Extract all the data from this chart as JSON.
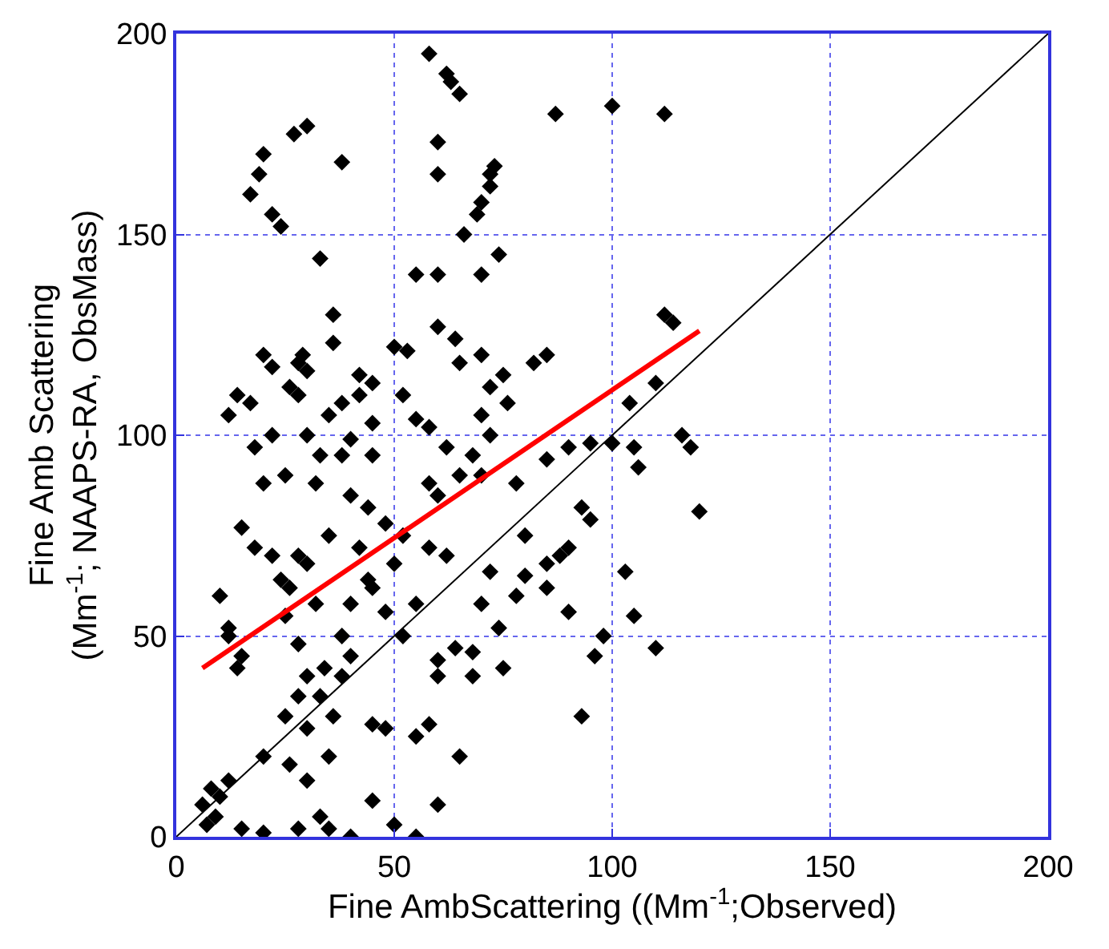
{
  "chart_data": {
    "type": "scatter",
    "xlabel": "Fine AmbScattering ((Mm$^{-1}$;Observed)",
    "ylabel": "Fine Amb Scattering\n(Mm$^{-1}$; NAAPS-RA, ObsMass)",
    "xlim": [
      0,
      200
    ],
    "ylim": [
      0,
      200
    ],
    "xticks": [
      0,
      50,
      100,
      150,
      200
    ],
    "yticks": [
      0,
      50,
      100,
      150,
      200
    ],
    "grid": true,
    "marker": "diamond",
    "series": [
      {
        "color": "#000000",
        "x": [
          30,
          27,
          19,
          20,
          17,
          22,
          24,
          38,
          33,
          58,
          62,
          63,
          65,
          87,
          100,
          112,
          60,
          60,
          72,
          72,
          73,
          70,
          69,
          66,
          74,
          55,
          60,
          70,
          36,
          36,
          42,
          60,
          64,
          29,
          28,
          30,
          20,
          22,
          26,
          50,
          53,
          65,
          70,
          52,
          72,
          76,
          14,
          17,
          12,
          22,
          18,
          40,
          45,
          55,
          58,
          33,
          38,
          45,
          62,
          68,
          58,
          60,
          65,
          70,
          78,
          85,
          90,
          95,
          100,
          105,
          106,
          93,
          95,
          103,
          116,
          118,
          112,
          114,
          120,
          110,
          104,
          88,
          80,
          85,
          78,
          90,
          98,
          96,
          105,
          110,
          93,
          74,
          68,
          60,
          64,
          55,
          50,
          45,
          40,
          42,
          35,
          30,
          28,
          24,
          25,
          32,
          38,
          34,
          30,
          28,
          36,
          30,
          25,
          15,
          12,
          14,
          8,
          6,
          9,
          10,
          12,
          7,
          15,
          20,
          28,
          33,
          35,
          40,
          45,
          50,
          55,
          60,
          20,
          26,
          30,
          35,
          45,
          48,
          55,
          58,
          65,
          60,
          68,
          75,
          70,
          72,
          80,
          85,
          90,
          62,
          58,
          52,
          48,
          44,
          40,
          32,
          25,
          20,
          15,
          18,
          10,
          12,
          22,
          26,
          44,
          48,
          52,
          40,
          38,
          33,
          28,
          70,
          72,
          45,
          42,
          38,
          35,
          30,
          28,
          85,
          82,
          75
        ],
        "values": [
          177,
          175,
          165,
          170,
          160,
          155,
          152,
          168,
          144,
          195,
          190,
          188,
          185,
          180,
          182,
          180,
          173,
          165,
          162,
          165,
          167,
          158,
          155,
          150,
          145,
          140,
          140,
          140,
          130,
          123,
          115,
          127,
          124,
          120,
          118,
          116,
          120,
          117,
          112,
          122,
          121,
          118,
          120,
          110,
          112,
          108,
          110,
          108,
          105,
          100,
          97,
          99,
          103,
          104,
          102,
          95,
          95,
          95,
          97,
          95,
          88,
          85,
          90,
          90,
          88,
          94,
          97,
          98,
          98,
          97,
          92,
          82,
          79,
          66,
          100,
          97,
          130,
          128,
          81,
          113,
          108,
          70,
          75,
          68,
          60,
          56,
          50,
          45,
          55,
          47,
          30,
          52,
          46,
          44,
          47,
          58,
          68,
          62,
          58,
          72,
          75,
          68,
          70,
          64,
          55,
          58,
          50,
          42,
          40,
          48,
          30,
          27,
          30,
          45,
          50,
          42,
          12,
          8,
          5,
          10,
          14,
          3,
          2,
          1,
          2,
          5,
          2,
          0,
          9,
          3,
          0,
          8,
          20,
          18,
          14,
          20,
          28,
          27,
          25,
          28,
          20,
          40,
          40,
          42,
          58,
          66,
          65,
          62,
          72,
          70,
          72,
          75,
          78,
          82,
          85,
          88,
          90,
          88,
          77,
          72,
          60,
          52,
          70,
          62,
          64,
          56,
          50,
          45,
          40,
          35,
          35,
          105,
          100,
          113,
          110,
          108,
          105,
          100,
          110,
          120,
          118,
          115
        ]
      },
      {
        "type": "line",
        "color": "#ff0000",
        "marker": "none",
        "x": [
          6,
          120
        ],
        "values": [
          42,
          126
        ]
      },
      {
        "type": "line",
        "color": "#000000",
        "marker": "none",
        "x": [
          0,
          200
        ],
        "values": [
          0,
          200
        ]
      }
    ]
  }
}
